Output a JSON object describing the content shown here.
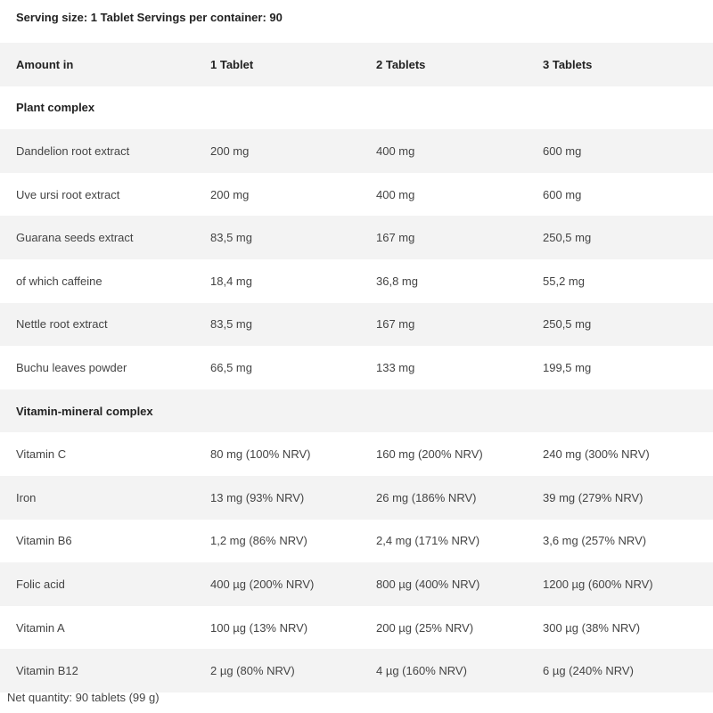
{
  "serving_line": "Serving size: 1 Tablet  Servings per container: 90",
  "header": [
    "Amount in",
    "1 Tablet",
    "2 Tablets",
    "3 Tablets"
  ],
  "sections": [
    {
      "title": "Plant complex",
      "rows": [
        [
          "Dandelion root extract",
          "200 mg",
          "400 mg",
          "600 mg"
        ],
        [
          "Uve ursi root extract",
          "200 mg",
          "400 mg",
          "600 mg"
        ],
        [
          "Guarana seeds extract",
          "83,5 mg",
          "167 mg",
          "250,5 mg"
        ],
        [
          "of which caffeine",
          "18,4 mg",
          "36,8 mg",
          "55,2 mg"
        ],
        [
          "Nettle root extract",
          "83,5 mg",
          "167 mg",
          "250,5 mg"
        ],
        [
          "Buchu leaves powder",
          "66,5 mg",
          "133 mg",
          "199,5 mg"
        ]
      ]
    },
    {
      "title": "Vitamin-mineral complex",
      "rows": [
        [
          "Vitamin C",
          "80 mg (100% NRV)",
          "160 mg (200% NRV)",
          "240 mg (300% NRV)"
        ],
        [
          "Iron",
          "13 mg (93% NRV)",
          "26 mg (186% NRV)",
          "39 mg (279% NRV)"
        ],
        [
          "Vitamin B6",
          "1,2 mg (86% NRV)",
          "2,4 mg (171% NRV)",
          "3,6 mg (257% NRV)"
        ],
        [
          "Folic acid",
          "400 µg (200% NRV)",
          "800 µg (400% NRV)",
          "1200 µg (600% NRV)"
        ],
        [
          "Vitamin A",
          "100 µg (13% NRV)",
          "200 µg (25% NRV)",
          "300 µg (38% NRV)"
        ],
        [
          "Vitamin B12",
          "2  µg (80% NRV)",
          "4 µg (160% NRV)",
          "6 µg (240% NRV)"
        ]
      ]
    }
  ],
  "footer": "Net quantity: 90 tablets (99 g)",
  "colors": {
    "shaded_row": "#f3f3f3",
    "text": "#444444",
    "background": "#ffffff"
  }
}
